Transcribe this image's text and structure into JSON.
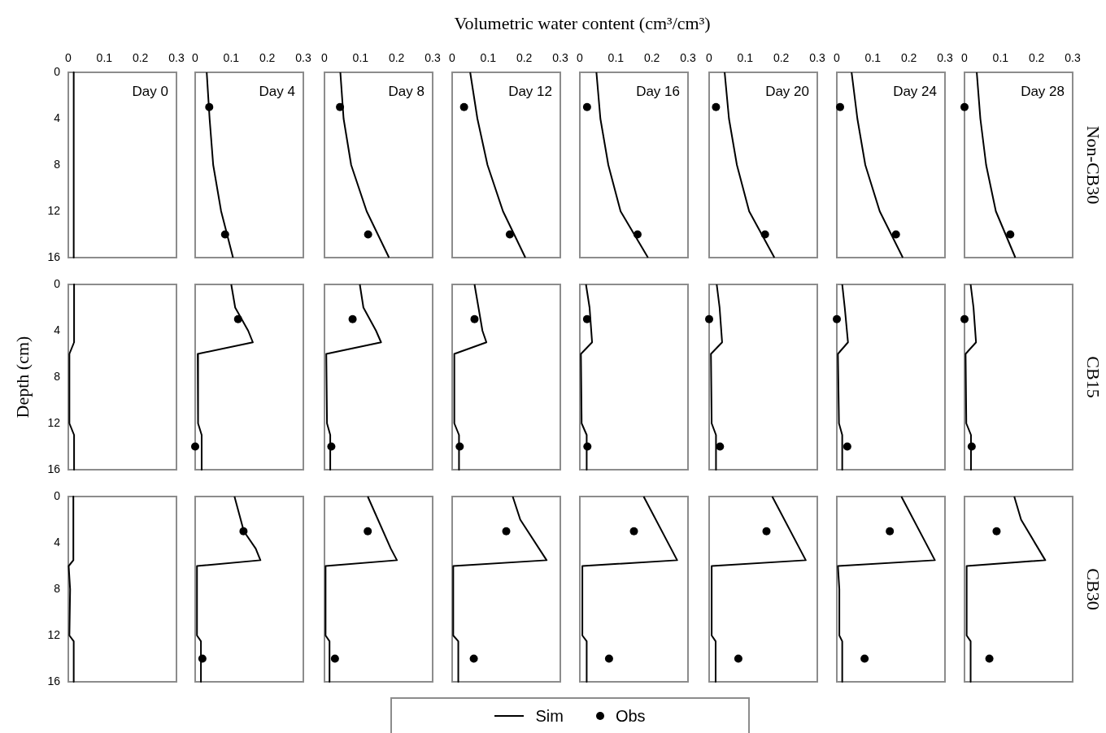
{
  "chart_data": [
    {
      "type": "line",
      "title": "Day 0",
      "xlim": [
        0,
        0.3
      ],
      "xticks": [
        0,
        0.1,
        0.2,
        0.3
      ],
      "ylim": [
        16,
        0
      ],
      "yticks": [
        0,
        4,
        8,
        12,
        16
      ],
      "marker": "none",
      "series": [
        {
          "type": "line",
          "color": "#000000",
          "x": [
            0.015,
            0.015
          ],
          "values": [
            0,
            16
          ]
        }
      ]
    },
    {
      "type": "line",
      "title": "Day 4",
      "legend": "bottom",
      "xlim": [
        0,
        0.3
      ],
      "xticks": [
        0,
        0.1,
        0.2,
        0.3
      ],
      "ylim": [
        16,
        0
      ],
      "yticks": [
        0,
        4,
        8,
        12,
        16
      ],
      "tick_labels": "x",
      "marker": "none",
      "series": [
        {
          "name": "Sim",
          "type": "line",
          "color": "#000000",
          "x": [
            0.032,
            0.04,
            0.05,
            0.072,
            0.105
          ],
          "values": [
            0,
            4,
            8,
            12,
            16
          ]
        },
        {
          "name": "Obs",
          "type": "scatter",
          "color": "#000000",
          "marker": "circle",
          "x": [
            0.039,
            0.083
          ],
          "values": [
            3,
            14
          ]
        }
      ]
    },
    {
      "type": "line",
      "title": "Day 8",
      "xlim": [
        0,
        0.3
      ],
      "xticks": [
        0,
        0.1,
        0.2,
        0.3
      ],
      "ylim": [
        16,
        0
      ],
      "yticks": [
        0,
        4,
        8,
        12,
        16
      ],
      "tick_labels": "x",
      "marker": "none",
      "series": [
        {
          "type": "line",
          "color": "#000000",
          "x": [
            0.044,
            0.053,
            0.074,
            0.117,
            0.179
          ],
          "values": [
            0,
            4,
            8,
            12,
            16
          ]
        },
        {
          "type": "scatter",
          "color": "#000000",
          "marker": "circle",
          "x": [
            0.043,
            0.121
          ],
          "values": [
            3,
            14
          ]
        }
      ]
    },
    {
      "type": "line",
      "title": "Day 12",
      "xlim": [
        0,
        0.3
      ],
      "xticks": [
        0,
        0.1,
        0.2,
        0.3
      ],
      "ylim": [
        16,
        0
      ],
      "yticks": [
        0,
        4,
        8,
        12,
        16
      ],
      "tick_labels": "x",
      "marker": "none",
      "series": [
        {
          "type": "line",
          "color": "#000000",
          "x": [
            0.05,
            0.07,
            0.098,
            0.141,
            0.203
          ],
          "values": [
            0,
            4,
            8,
            12,
            16
          ]
        },
        {
          "type": "scatter",
          "color": "#000000",
          "marker": "circle",
          "x": [
            0.033,
            0.16
          ],
          "values": [
            3,
            14
          ]
        }
      ]
    },
    {
      "type": "line",
      "title": "Day 16",
      "xlabel": "Volumetric water content (cm³/cm³)",
      "xlim": [
        0,
        0.3
      ],
      "xticks": [
        0,
        0.1,
        0.2,
        0.3
      ],
      "ylim": [
        16,
        0
      ],
      "yticks": [
        0,
        4,
        8,
        12,
        16
      ],
      "tick_labels": "x",
      "marker": "none",
      "series": [
        {
          "type": "line",
          "color": "#000000",
          "x": [
            0.046,
            0.057,
            0.079,
            0.113,
            0.189
          ],
          "values": [
            0,
            4,
            8,
            12,
            16
          ]
        },
        {
          "type": "scatter",
          "color": "#000000",
          "marker": "circle",
          "x": [
            0.02,
            0.16
          ],
          "values": [
            3,
            14
          ]
        }
      ]
    },
    {
      "type": "line",
      "title": "Day 20",
      "xlim": [
        0,
        0.3
      ],
      "xticks": [
        0,
        0.1,
        0.2,
        0.3
      ],
      "ylim": [
        16,
        0
      ],
      "yticks": [
        0,
        4,
        8,
        12,
        16
      ],
      "tick_labels": "x",
      "marker": "none",
      "series": [
        {
          "type": "line",
          "color": "#000000",
          "x": [
            0.043,
            0.055,
            0.077,
            0.111,
            0.181
          ],
          "values": [
            0,
            4,
            8,
            12,
            16
          ]
        },
        {
          "type": "scatter",
          "color": "#000000",
          "marker": "circle",
          "x": [
            0.019,
            0.155
          ],
          "values": [
            3,
            14
          ]
        }
      ]
    },
    {
      "type": "line",
      "title": "Day 24",
      "xlim": [
        0,
        0.3
      ],
      "xticks": [
        0,
        0.1,
        0.2,
        0.3
      ],
      "ylim": [
        16,
        0
      ],
      "yticks": [
        0,
        4,
        8,
        12,
        16
      ],
      "tick_labels": "x",
      "marker": "none",
      "series": [
        {
          "type": "line",
          "color": "#000000",
          "x": [
            0.041,
            0.057,
            0.079,
            0.119,
            0.183
          ],
          "values": [
            0,
            4,
            8,
            12,
            16
          ]
        },
        {
          "type": "scatter",
          "color": "#000000",
          "marker": "circle",
          "x": [
            0.009,
            0.164
          ],
          "values": [
            3,
            14
          ]
        }
      ]
    },
    {
      "type": "line",
      "title": "Day 28",
      "y2label": "Non-CB30",
      "xlim": [
        0,
        0.3
      ],
      "xticks": [
        0,
        0.1,
        0.2,
        0.3
      ],
      "ylim": [
        16,
        0
      ],
      "yticks": [
        0,
        4,
        8,
        12,
        16
      ],
      "tick_labels": "x",
      "marker": "none",
      "series": [
        {
          "type": "line",
          "color": "#000000",
          "x": [
            0.034,
            0.044,
            0.06,
            0.087,
            0.141
          ],
          "values": [
            0,
            4,
            8,
            12,
            16
          ]
        },
        {
          "type": "scatter",
          "color": "#000000",
          "marker": "circle",
          "x": [
            0.0,
            0.127
          ],
          "values": [
            3,
            14
          ]
        }
      ]
    },
    {
      "type": "line",
      "ylabel": "Depth (cm)",
      "xlim": [
        0,
        0.3
      ],
      "ylim": [
        16,
        0
      ],
      "yticks": [
        0,
        4,
        8,
        12,
        16
      ],
      "tick_labels": "y",
      "marker": "none",
      "series": [
        {
          "type": "line",
          "color": "#000000",
          "x": [
            0.016,
            0.016,
            0.003,
            0.003,
            0.016,
            0.016
          ],
          "values": [
            0,
            5,
            6,
            12,
            13,
            16
          ]
        }
      ]
    },
    {
      "type": "line",
      "xlim": [
        0,
        0.3
      ],
      "ylim": [
        16,
        0
      ],
      "tick_labels": false,
      "marker": "none",
      "series": [
        {
          "type": "line",
          "color": "#000000",
          "x": [
            0.1,
            0.111,
            0.147,
            0.16,
            0.007,
            0.008,
            0.018,
            0.018
          ],
          "values": [
            0,
            2,
            4,
            5,
            6,
            12,
            13,
            16
          ]
        },
        {
          "type": "scatter",
          "color": "#000000",
          "marker": "circle",
          "x": [
            0.119,
            0.0
          ],
          "values": [
            3,
            14
          ]
        }
      ]
    },
    {
      "type": "line",
      "xlim": [
        0,
        0.3
      ],
      "ylim": [
        16,
        0
      ],
      "tick_labels": false,
      "marker": "none",
      "series": [
        {
          "type": "line",
          "color": "#000000",
          "x": [
            0.098,
            0.108,
            0.143,
            0.157,
            0.005,
            0.007,
            0.016,
            0.016
          ],
          "values": [
            0,
            2,
            4,
            5,
            6,
            12,
            13,
            16
          ]
        },
        {
          "type": "scatter",
          "color": "#000000",
          "marker": "circle",
          "x": [
            0.078,
            0.019
          ],
          "values": [
            3,
            14
          ]
        }
      ]
    },
    {
      "type": "line",
      "xlim": [
        0,
        0.3
      ],
      "ylim": [
        16,
        0
      ],
      "tick_labels": false,
      "marker": "none",
      "series": [
        {
          "type": "line",
          "color": "#000000",
          "x": [
            0.062,
            0.084,
            0.095,
            0.006,
            0.006,
            0.019,
            0.019
          ],
          "values": [
            0,
            4,
            5,
            6,
            12,
            13,
            16
          ]
        },
        {
          "type": "scatter",
          "color": "#000000",
          "marker": "circle",
          "x": [
            0.062,
            0.021
          ],
          "values": [
            3,
            14
          ]
        }
      ]
    },
    {
      "type": "line",
      "xlim": [
        0,
        0.3
      ],
      "ylim": [
        16,
        0
      ],
      "tick_labels": false,
      "marker": "none",
      "series": [
        {
          "type": "line",
          "color": "#000000",
          "x": [
            0.017,
            0.027,
            0.034,
            0.003,
            0.005,
            0.019,
            0.019
          ],
          "values": [
            0,
            2,
            5,
            6,
            12,
            13,
            16
          ]
        },
        {
          "type": "scatter",
          "color": "#000000",
          "marker": "circle",
          "x": [
            0.02,
            0.021
          ],
          "values": [
            3,
            14
          ]
        }
      ]
    },
    {
      "type": "line",
      "xlim": [
        0,
        0.3
      ],
      "ylim": [
        16,
        0
      ],
      "tick_labels": false,
      "marker": "none",
      "series": [
        {
          "type": "line",
          "color": "#000000",
          "x": [
            0.021,
            0.029,
            0.036,
            0.005,
            0.007,
            0.019,
            0.019
          ],
          "values": [
            0,
            2,
            5,
            6,
            12,
            13,
            16
          ]
        },
        {
          "type": "scatter",
          "color": "#000000",
          "marker": "circle",
          "x": [
            0.0,
            0.03
          ],
          "values": [
            3,
            14
          ]
        }
      ]
    },
    {
      "type": "line",
      "xlim": [
        0,
        0.3
      ],
      "ylim": [
        16,
        0
      ],
      "tick_labels": false,
      "marker": "none",
      "series": [
        {
          "type": "line",
          "color": "#000000",
          "x": [
            0.015,
            0.022,
            0.031,
            0.003,
            0.006,
            0.015,
            0.015
          ],
          "values": [
            0,
            2,
            5,
            6,
            12,
            13,
            16
          ]
        },
        {
          "type": "scatter",
          "color": "#000000",
          "marker": "circle",
          "x": [
            0.0,
            0.029
          ],
          "values": [
            3,
            14
          ]
        }
      ]
    },
    {
      "type": "line",
      "y2label": "CB15",
      "xlim": [
        0,
        0.3
      ],
      "ylim": [
        16,
        0
      ],
      "tick_labels": false,
      "marker": "none",
      "series": [
        {
          "type": "line",
          "color": "#000000",
          "x": [
            0.017,
            0.025,
            0.032,
            0.003,
            0.005,
            0.018,
            0.018
          ],
          "values": [
            0,
            2,
            5,
            6,
            12,
            13,
            16
          ]
        },
        {
          "type": "scatter",
          "color": "#000000",
          "marker": "circle",
          "x": [
            0.0,
            0.02
          ],
          "values": [
            3,
            14
          ]
        }
      ]
    },
    {
      "type": "line",
      "xlim": [
        0,
        0.3
      ],
      "ylim": [
        16,
        0
      ],
      "yticks": [
        0,
        4,
        8,
        12,
        16
      ],
      "tick_labels": "y",
      "marker": "none",
      "series": [
        {
          "type": "line",
          "color": "#000000",
          "x": [
            0.014,
            0.014,
            0.001,
            0.005,
            0.003,
            0.015,
            0.015
          ],
          "values": [
            0,
            5.5,
            6,
            8,
            12,
            12.5,
            16
          ]
        }
      ]
    },
    {
      "type": "line",
      "xlim": [
        0,
        0.3
      ],
      "ylim": [
        16,
        0
      ],
      "tick_labels": false,
      "marker": "none",
      "series": [
        {
          "type": "line",
          "color": "#000000",
          "x": [
            0.109,
            0.135,
            0.168,
            0.181,
            0.005,
            0.005,
            0.016,
            0.016
          ],
          "values": [
            0,
            3,
            4.5,
            5.5,
            6,
            12,
            12.5,
            16
          ]
        },
        {
          "type": "scatter",
          "color": "#000000",
          "marker": "circle",
          "x": [
            0.134,
            0.02
          ],
          "values": [
            3,
            14
          ]
        }
      ]
    },
    {
      "type": "line",
      "xlim": [
        0,
        0.3
      ],
      "ylim": [
        16,
        0
      ],
      "tick_labels": false,
      "marker": "none",
      "series": [
        {
          "type": "line",
          "color": "#000000",
          "x": [
            0.12,
            0.184,
            0.201,
            0.003,
            0.003,
            0.014,
            0.014
          ],
          "values": [
            0,
            4.5,
            5.5,
            6,
            12,
            12.5,
            16
          ]
        },
        {
          "type": "scatter",
          "color": "#000000",
          "marker": "circle",
          "x": [
            0.12,
            0.029
          ],
          "values": [
            3,
            14
          ]
        }
      ]
    },
    {
      "type": "line",
      "xlim": [
        0,
        0.3
      ],
      "ylim": [
        16,
        0
      ],
      "tick_labels": false,
      "marker": "none",
      "series": [
        {
          "type": "line",
          "color": "#000000",
          "x": [
            0.168,
            0.189,
            0.262,
            0.003,
            0.003,
            0.017,
            0.017
          ],
          "values": [
            0,
            2,
            5.5,
            6,
            12,
            12.5,
            16
          ]
        },
        {
          "type": "scatter",
          "color": "#000000",
          "marker": "circle",
          "x": [
            0.15,
            0.06
          ],
          "values": [
            3,
            14
          ]
        }
      ]
    },
    {
      "type": "line",
      "xlim": [
        0,
        0.3
      ],
      "ylim": [
        16,
        0
      ],
      "tick_labels": false,
      "marker": "none",
      "series": [
        {
          "type": "line",
          "color": "#000000",
          "x": [
            0.177,
            0.27,
            0.007,
            0.007,
            0.019,
            0.019
          ],
          "values": [
            0,
            5.5,
            6,
            12,
            12.5,
            16
          ]
        },
        {
          "type": "scatter",
          "color": "#000000",
          "marker": "circle",
          "x": [
            0.15,
            0.081
          ],
          "values": [
            3,
            14
          ]
        }
      ]
    },
    {
      "type": "line",
      "xlim": [
        0,
        0.3
      ],
      "ylim": [
        16,
        0
      ],
      "tick_labels": false,
      "marker": "none",
      "series": [
        {
          "type": "line",
          "color": "#000000",
          "x": [
            0.175,
            0.268,
            0.007,
            0.007,
            0.018,
            0.018
          ],
          "values": [
            0,
            5.5,
            6,
            12,
            12.5,
            16
          ]
        },
        {
          "type": "scatter",
          "color": "#000000",
          "marker": "circle",
          "x": [
            0.159,
            0.081
          ],
          "values": [
            3,
            14
          ]
        }
      ]
    },
    {
      "type": "line",
      "xlim": [
        0,
        0.3
      ],
      "ylim": [
        16,
        0
      ],
      "tick_labels": false,
      "marker": "none",
      "series": [
        {
          "type": "line",
          "color": "#000000",
          "x": [
            0.179,
            0.272,
            0.003,
            0.007,
            0.007,
            0.015,
            0.015
          ],
          "values": [
            0,
            5.5,
            6,
            8,
            12,
            12.5,
            16
          ]
        },
        {
          "type": "scatter",
          "color": "#000000",
          "marker": "circle",
          "x": [
            0.147,
            0.077
          ],
          "values": [
            3,
            14
          ]
        }
      ]
    },
    {
      "type": "line",
      "y2label": "CB30",
      "xlim": [
        0,
        0.3
      ],
      "ylim": [
        16,
        0
      ],
      "tick_labels": false,
      "marker": "none",
      "series": [
        {
          "type": "line",
          "color": "#000000",
          "x": [
            0.138,
            0.157,
            0.224,
            0.006,
            0.006,
            0.017,
            0.017
          ],
          "values": [
            0,
            2,
            5.5,
            6,
            12,
            12.5,
            16
          ]
        },
        {
          "type": "scatter",
          "color": "#000000",
          "marker": "circle",
          "x": [
            0.089,
            0.069
          ],
          "values": [
            3,
            14
          ]
        }
      ]
    }
  ]
}
